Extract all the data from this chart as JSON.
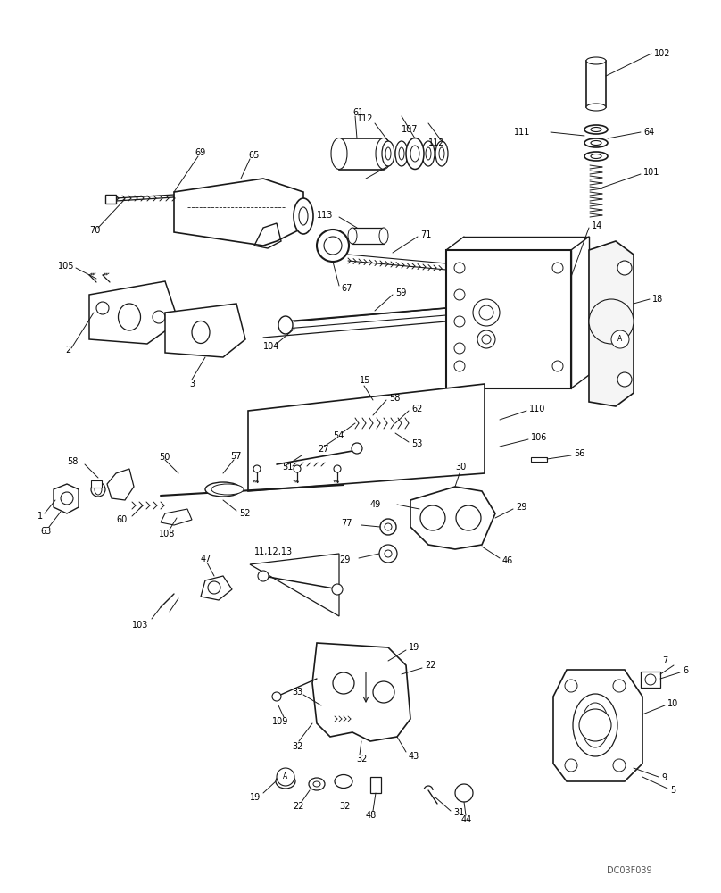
{
  "background_color": "#ffffff",
  "line_color": "#1a1a1a",
  "text_color": "#000000",
  "watermark": "DC03F039",
  "figsize": [
    8.08,
    10.0
  ],
  "dpi": 100
}
